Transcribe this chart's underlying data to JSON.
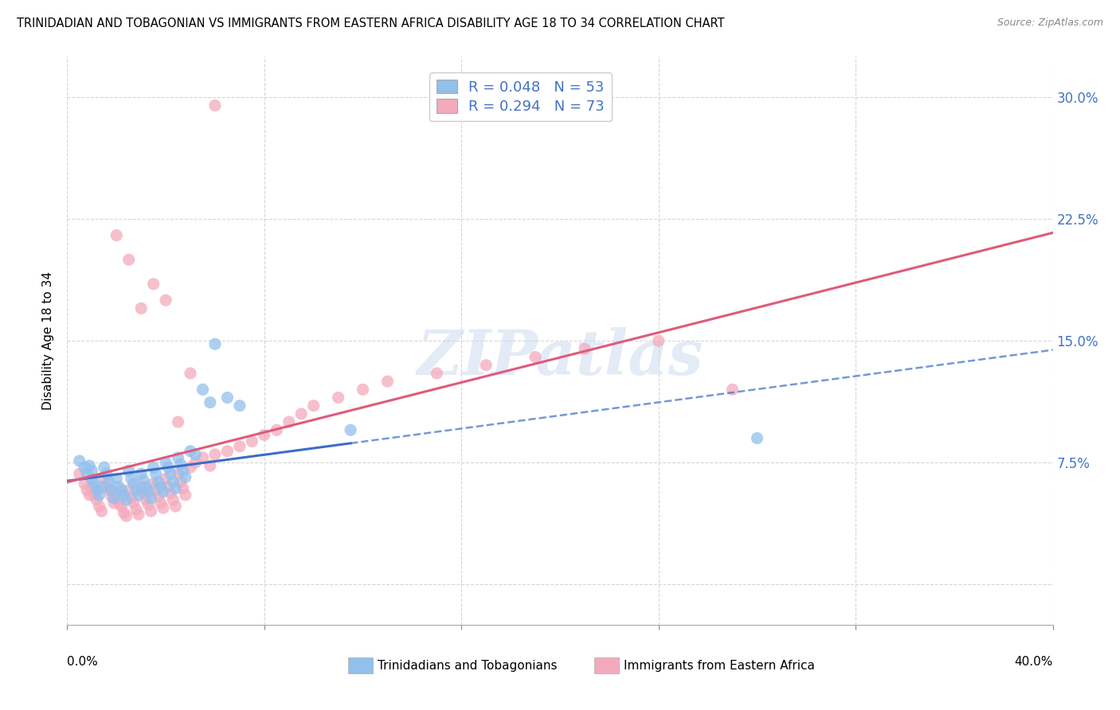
{
  "title": "TRINIDADIAN AND TOBAGONIAN VS IMMIGRANTS FROM EASTERN AFRICA DISABILITY AGE 18 TO 34 CORRELATION CHART",
  "source": "Source: ZipAtlas.com",
  "ylabel": "Disability Age 18 to 34",
  "xlim": [
    0.0,
    0.4
  ],
  "ylim": [
    -0.025,
    0.325
  ],
  "yticks": [
    0.0,
    0.075,
    0.15,
    0.225,
    0.3
  ],
  "ytick_labels": [
    "",
    "7.5%",
    "15.0%",
    "22.5%",
    "30.0%"
  ],
  "xticks": [
    0.0,
    0.08,
    0.16,
    0.24,
    0.32,
    0.4
  ],
  "blue_R": 0.048,
  "blue_N": 53,
  "pink_R": 0.294,
  "pink_N": 73,
  "blue_color": "#92C0ED",
  "pink_color": "#F4AABC",
  "blue_line_color": "#3B6DC7",
  "pink_line_color": "#E05A7A",
  "watermark": "ZIPatlas",
  "legend_label_blue": "Trinidadians and Tobagonians",
  "legend_label_pink": "Immigrants from Eastern Africa",
  "blue_scatter_x": [
    0.005,
    0.007,
    0.008,
    0.009,
    0.01,
    0.01,
    0.011,
    0.012,
    0.013,
    0.014,
    0.015,
    0.016,
    0.017,
    0.018,
    0.019,
    0.02,
    0.021,
    0.022,
    0.023,
    0.024,
    0.025,
    0.026,
    0.027,
    0.028,
    0.029,
    0.03,
    0.031,
    0.032,
    0.033,
    0.034,
    0.035,
    0.036,
    0.037,
    0.038,
    0.039,
    0.04,
    0.041,
    0.042,
    0.043,
    0.044,
    0.045,
    0.046,
    0.047,
    0.048,
    0.05,
    0.052,
    0.055,
    0.058,
    0.06,
    0.065,
    0.07,
    0.115,
    0.28
  ],
  "blue_scatter_y": [
    0.076,
    0.072,
    0.068,
    0.073,
    0.07,
    0.065,
    0.062,
    0.058,
    0.055,
    0.06,
    0.072,
    0.068,
    0.063,
    0.058,
    0.053,
    0.065,
    0.06,
    0.058,
    0.055,
    0.052,
    0.07,
    0.065,
    0.062,
    0.058,
    0.055,
    0.068,
    0.064,
    0.06,
    0.057,
    0.053,
    0.072,
    0.068,
    0.063,
    0.06,
    0.057,
    0.075,
    0.072,
    0.068,
    0.063,
    0.059,
    0.078,
    0.074,
    0.07,
    0.066,
    0.082,
    0.08,
    0.12,
    0.112,
    0.148,
    0.115,
    0.11,
    0.095,
    0.09
  ],
  "pink_scatter_x": [
    0.005,
    0.007,
    0.008,
    0.009,
    0.01,
    0.011,
    0.012,
    0.013,
    0.014,
    0.015,
    0.016,
    0.017,
    0.018,
    0.019,
    0.02,
    0.021,
    0.022,
    0.023,
    0.024,
    0.025,
    0.026,
    0.027,
    0.028,
    0.029,
    0.03,
    0.031,
    0.032,
    0.033,
    0.034,
    0.035,
    0.036,
    0.037,
    0.038,
    0.039,
    0.04,
    0.041,
    0.042,
    0.043,
    0.044,
    0.045,
    0.046,
    0.047,
    0.048,
    0.05,
    0.052,
    0.055,
    0.058,
    0.06,
    0.065,
    0.07,
    0.075,
    0.08,
    0.085,
    0.09,
    0.095,
    0.1,
    0.11,
    0.12,
    0.13,
    0.15,
    0.17,
    0.19,
    0.21,
    0.24,
    0.27,
    0.03,
    0.035,
    0.025,
    0.04,
    0.02,
    0.045,
    0.05,
    0.06
  ],
  "pink_scatter_y": [
    0.068,
    0.062,
    0.058,
    0.055,
    0.06,
    0.055,
    0.052,
    0.048,
    0.045,
    0.065,
    0.06,
    0.058,
    0.054,
    0.05,
    0.055,
    0.05,
    0.048,
    0.044,
    0.042,
    0.058,
    0.053,
    0.05,
    0.046,
    0.043,
    0.06,
    0.056,
    0.052,
    0.049,
    0.045,
    0.062,
    0.058,
    0.054,
    0.05,
    0.047,
    0.065,
    0.06,
    0.056,
    0.052,
    0.048,
    0.068,
    0.063,
    0.059,
    0.055,
    0.072,
    0.075,
    0.078,
    0.073,
    0.08,
    0.082,
    0.085,
    0.088,
    0.092,
    0.095,
    0.1,
    0.105,
    0.11,
    0.115,
    0.12,
    0.125,
    0.13,
    0.135,
    0.14,
    0.145,
    0.15,
    0.12,
    0.17,
    0.185,
    0.2,
    0.175,
    0.215,
    0.1,
    0.13,
    0.295
  ],
  "blue_line_x0": 0.0,
  "blue_line_x_solid_end": 0.115,
  "pink_line_x0": 0.0,
  "pink_line_x1": 0.4
}
